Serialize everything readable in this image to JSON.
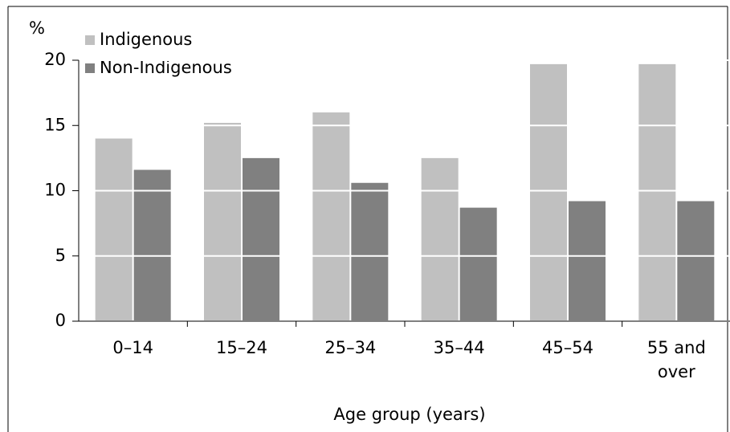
{
  "chart_data": {
    "type": "bar",
    "y_label": "%",
    "x_label": "Age group (years)",
    "categories": [
      "0–14",
      "15–24",
      "25–34",
      "35–44",
      "45–54",
      "55 and over"
    ],
    "series": [
      {
        "name": "Indigenous",
        "color": "#c0c0c0",
        "values": [
          14.0,
          15.2,
          16.0,
          12.5,
          19.7,
          19.7
        ]
      },
      {
        "name": "Non-Indigenous",
        "color": "#808080",
        "values": [
          11.6,
          12.5,
          10.6,
          8.7,
          9.2,
          9.2
        ]
      }
    ],
    "ylim": [
      0,
      20
    ],
    "yticks": [
      0,
      5,
      10,
      15,
      20
    ],
    "grid": true
  }
}
